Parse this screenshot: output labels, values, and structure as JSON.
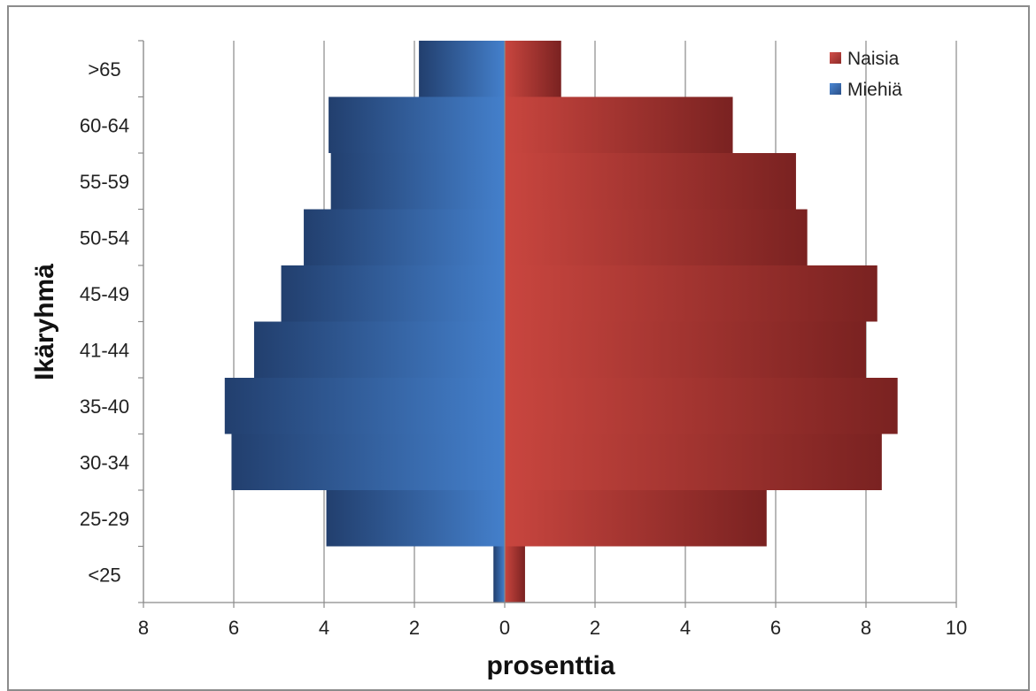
{
  "chart_data": {
    "type": "bar",
    "orientation": "horizontal",
    "stacked_diverging": true,
    "title": "",
    "xlabel": "prosenttia",
    "ylabel": "Ikäryhmä",
    "categories": [
      "<25",
      "25-29",
      "30-34",
      "35-40",
      "41-44",
      "45-49",
      "50-54",
      "55-59",
      "60-64",
      ">65"
    ],
    "series": [
      {
        "name": "Naisia",
        "color": "#c0403f",
        "values": [
          0.45,
          5.8,
          8.35,
          8.7,
          8.0,
          8.25,
          6.7,
          6.45,
          5.05,
          1.25
        ]
      },
      {
        "name": "Miehiä",
        "color": "#3e76c0",
        "values": [
          0.25,
          3.95,
          6.05,
          6.2,
          5.55,
          4.95,
          4.45,
          3.85,
          3.9,
          1.9
        ]
      }
    ],
    "xlim": [
      -8,
      10
    ],
    "x_ticks": [
      -8,
      -6,
      -4,
      -2,
      0,
      2,
      4,
      6,
      8,
      10
    ],
    "x_tick_labels": [
      "8",
      "6",
      "4",
      "2",
      "0",
      "2",
      "4",
      "6",
      "8",
      "10"
    ],
    "grid": "vertical",
    "legend_position": "top-right"
  }
}
